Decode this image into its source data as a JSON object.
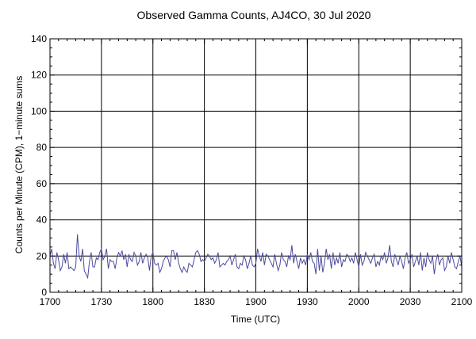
{
  "chart_data": {
    "type": "line",
    "title": "Observed Gamma Counts, AJ4CO, 30 Jul 2020",
    "xlabel": "Time (UTC)",
    "ylabel": "Counts per Minute (CPM), 1−minute sums",
    "x_tick_labels": [
      "1700",
      "1730",
      "1800",
      "1830",
      "1900",
      "1930",
      "2000",
      "2030",
      "2100"
    ],
    "y_tick_labels": [
      "0",
      "20",
      "40",
      "60",
      "80",
      "100",
      "120",
      "140"
    ],
    "xlim": [
      0,
      240
    ],
    "ylim": [
      0,
      140
    ],
    "x_unit": "minutes after 1700 UTC",
    "grid": true,
    "series": [
      {
        "name": "",
        "color": "#4b4b9e",
        "values": [
          20,
          24,
          16,
          13,
          22,
          18,
          12,
          14,
          21,
          16,
          22,
          13,
          14,
          13,
          12,
          14,
          32,
          20,
          17,
          24,
          12,
          10,
          8,
          17,
          22,
          14,
          14,
          19,
          18,
          22,
          24,
          18,
          20,
          24,
          13,
          18,
          17,
          17,
          13,
          19,
          22,
          20,
          23,
          18,
          21,
          14,
          21,
          18,
          17,
          22,
          20,
          15,
          17,
          22,
          16,
          19,
          21,
          19,
          12,
          20,
          22,
          16,
          15,
          16,
          11,
          13,
          17,
          19,
          20,
          18,
          14,
          23,
          23,
          18,
          22,
          16,
          13,
          11,
          14,
          12,
          11,
          16,
          15,
          14,
          18,
          22,
          23,
          21,
          17,
          18,
          17,
          19,
          21,
          20,
          18,
          19,
          16,
          18,
          22,
          14,
          15,
          16,
          15,
          17,
          18,
          20,
          15,
          18,
          21,
          14,
          13,
          16,
          15,
          20,
          18,
          13,
          16,
          20,
          15,
          14,
          16,
          24,
          20,
          17,
          22,
          15,
          21,
          20,
          18,
          16,
          14,
          21,
          16,
          12,
          15,
          22,
          18,
          17,
          14,
          20,
          18,
          26,
          16,
          21,
          17,
          13,
          19,
          16,
          18,
          15,
          21,
          18,
          22,
          17,
          16,
          10,
          24,
          12,
          20,
          11,
          16,
          24,
          18,
          21,
          13,
          22,
          15,
          19,
          16,
          22,
          14,
          18,
          17,
          21,
          20,
          17,
          19,
          16,
          22,
          18,
          14,
          21,
          15,
          17,
          22,
          20,
          18,
          16,
          19,
          21,
          14,
          17,
          15,
          20,
          18,
          22,
          16,
          19,
          26,
          17,
          14,
          21,
          18,
          15,
          20,
          17,
          13,
          19,
          22,
          16,
          18,
          21,
          14,
          17,
          20,
          15,
          22,
          12,
          19,
          14,
          22,
          18,
          16,
          20,
          10,
          17,
          21,
          15,
          18,
          19,
          12,
          14,
          20,
          16,
          22,
          18,
          14,
          13,
          17,
          20,
          14
        ]
      }
    ]
  }
}
